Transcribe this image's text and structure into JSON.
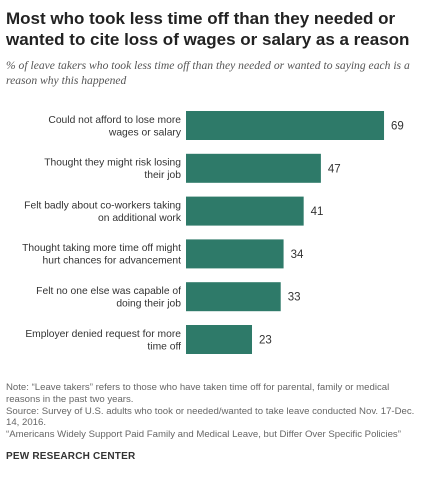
{
  "title": "Most who took less time off than they needed or wanted to cite loss of wages or salary as a reason",
  "subtitle": "% of leave takers who took less time off than they needed or wanted to saying each is a reason why this happened",
  "chart_data": {
    "type": "bar",
    "orientation": "horizontal",
    "categories": [
      [
        "Could not afford to lose more",
        "wages or salary"
      ],
      [
        "Thought they might risk losing",
        "their job"
      ],
      [
        "Felt badly about co-workers taking",
        "on additional work"
      ],
      [
        "Thought taking more time off might",
        "hurt chances for advancement"
      ],
      [
        "Felt no one else was capable of",
        "doing their job"
      ],
      [
        "Employer denied request for more",
        "time off"
      ]
    ],
    "values": [
      69,
      47,
      41,
      34,
      33,
      23
    ],
    "value_labels": [
      "69",
      "47",
      "41",
      "34",
      "33",
      "23"
    ],
    "xlim": [
      0,
      100
    ],
    "bar_color": "#2e7a69",
    "grid": false,
    "legend": "none"
  },
  "notes": {
    "note": "Note: “Leave takers” refers to those who have taken time off for parental, family or medical reasons in the past two years.",
    "source": "Source: Survey of U.S. adults who took or needed/wanted to take leave conducted Nov. 17-Dec. 14, 2016.",
    "report": "“Americans Widely Support Paid Family and Medical Leave, but Differ Over Specific Policies”"
  },
  "brand": "PEW RESEARCH CENTER"
}
